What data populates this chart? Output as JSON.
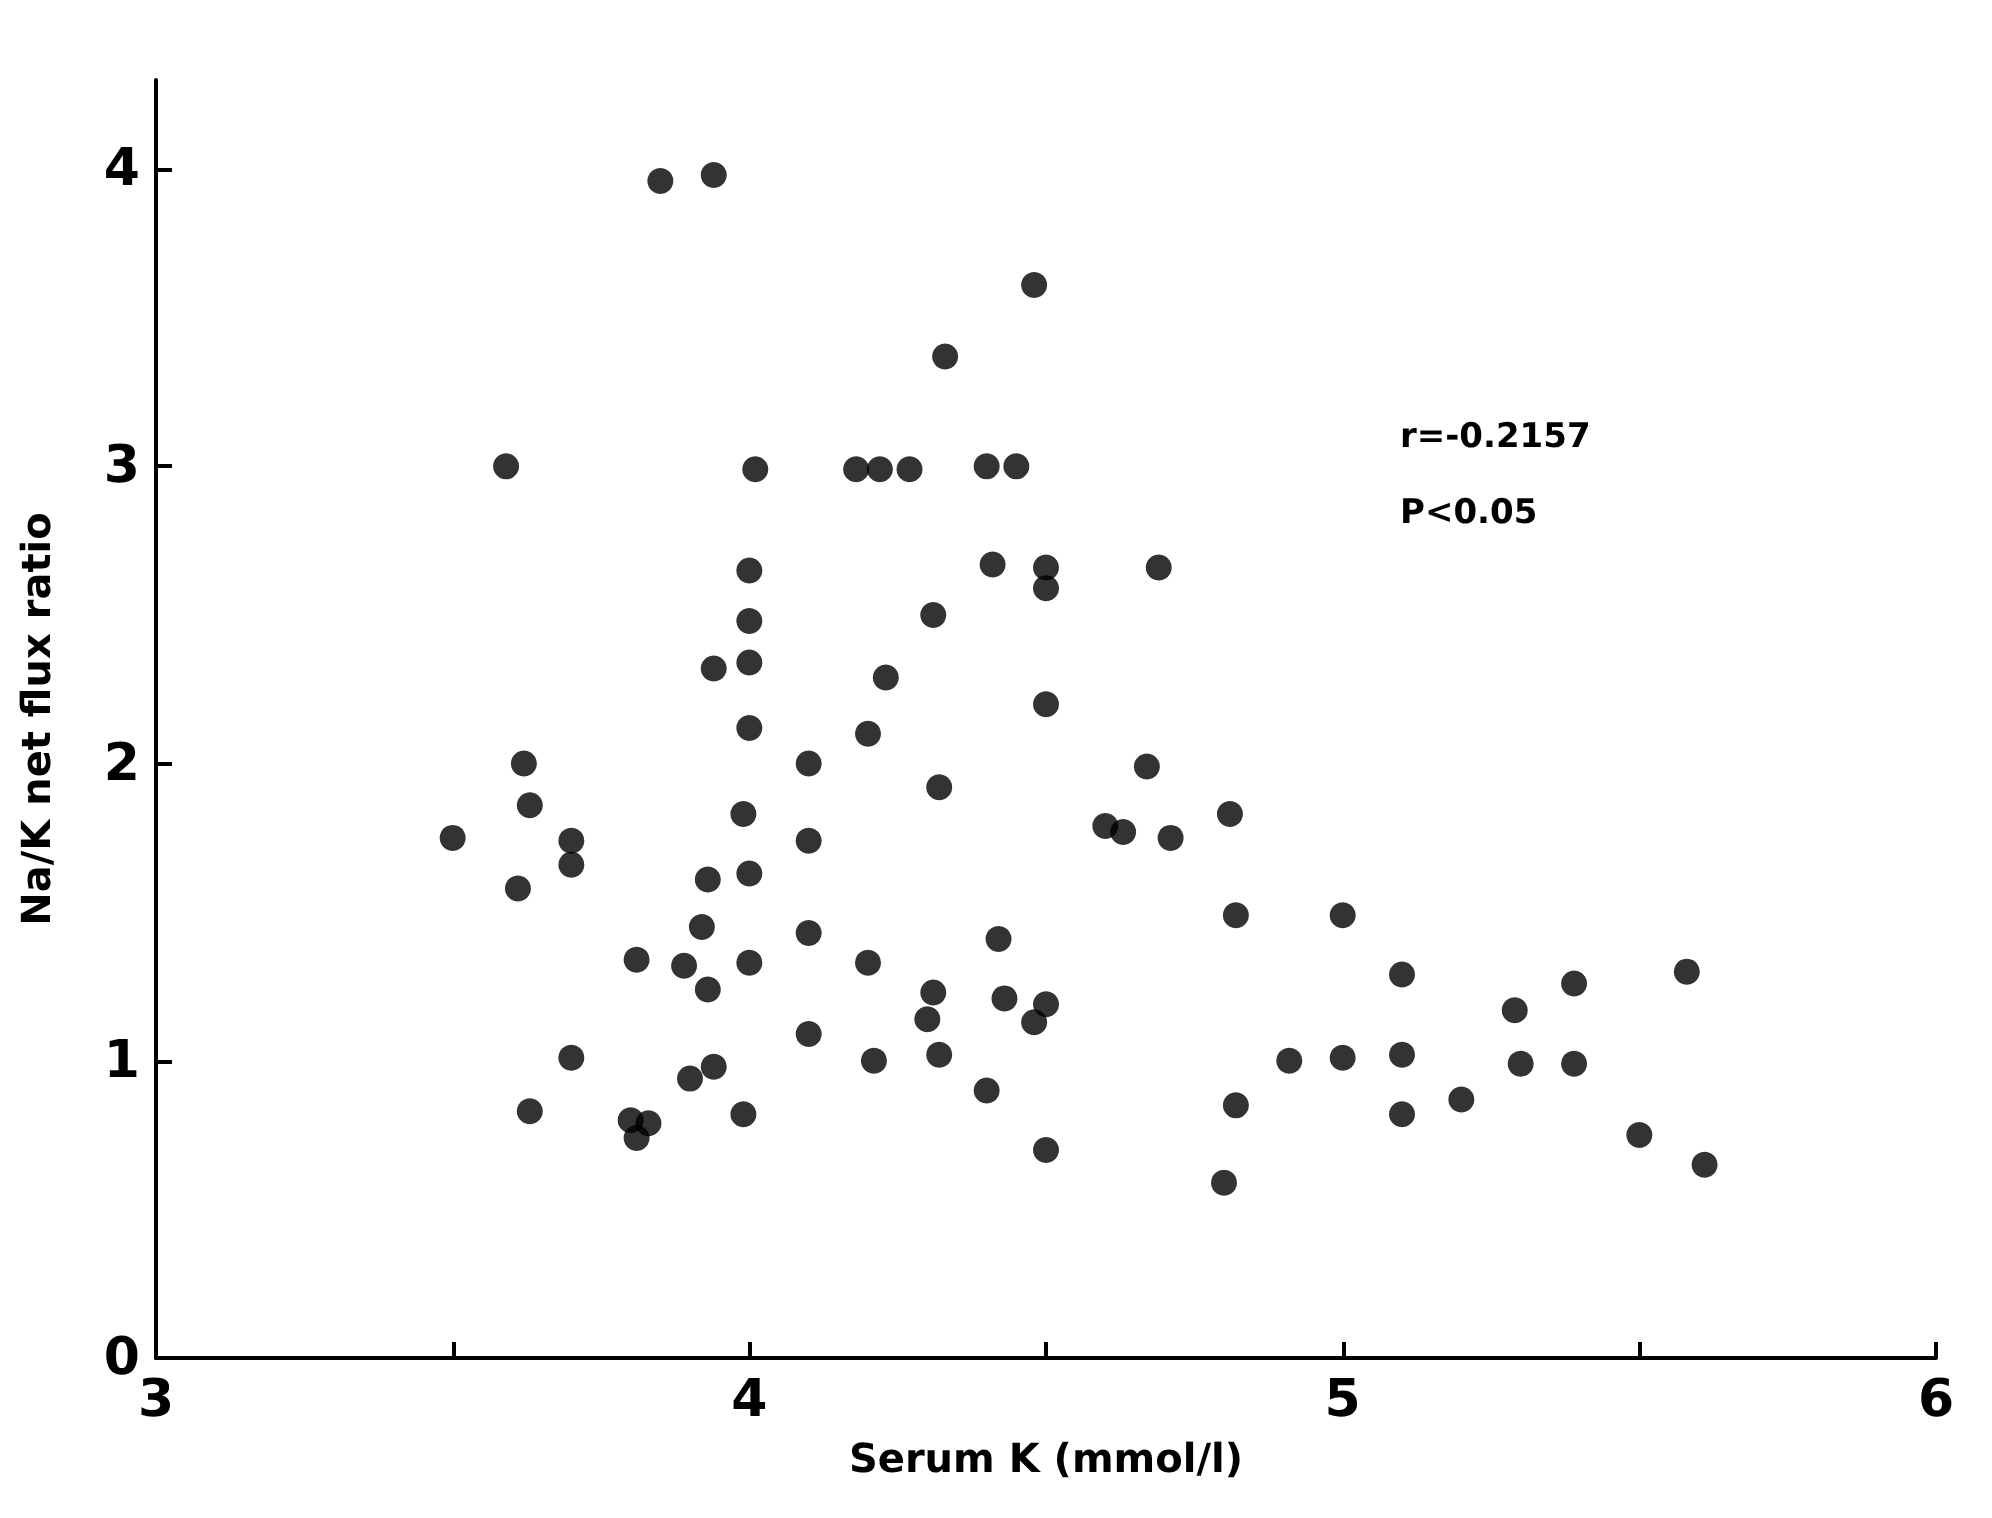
{
  "chart_data": {
    "type": "scatter",
    "xlabel": "Serum K (mmol/l)",
    "ylabel": "Na/K net flux ratio",
    "annotations": [
      "r=-0.2157",
      "P<0.05"
    ],
    "x": [
      3.85,
      3.94,
      3.59,
      4.01,
      4.18,
      4.22,
      4.27,
      4.33,
      4.0,
      4.0,
      4.0,
      3.94,
      4.0,
      4.31,
      4.23,
      4.2,
      3.62,
      3.63,
      3.5,
      3.7,
      3.7,
      3.61,
      3.99,
      4.1,
      4.1,
      4.32,
      3.93,
      4.0,
      3.92,
      3.81,
      3.89,
      4.0,
      3.93,
      4.1,
      4.2,
      4.31,
      4.3,
      4.32,
      4.1,
      4.21,
      3.7,
      3.9,
      3.94,
      3.63,
      3.8,
      3.83,
      3.81,
      3.99,
      4.4,
      4.48,
      4.4,
      4.45,
      4.41,
      4.5,
      4.5,
      4.69,
      4.5,
      4.67,
      4.6,
      4.63,
      4.71,
      4.81,
      4.82,
      5.0,
      4.42,
      4.43,
      4.5,
      4.48,
      4.5,
      4.91,
      5.0,
      5.1,
      5.1,
      5.1,
      4.82,
      4.8,
      5.2,
      5.29,
      5.39,
      5.3,
      5.39,
      5.5,
      5.58,
      5.61
    ],
    "values": [
      3.96,
      3.98,
      3.0,
      2.99,
      2.99,
      2.99,
      2.99,
      3.37,
      2.65,
      2.48,
      2.34,
      2.32,
      2.12,
      2.5,
      2.29,
      2.1,
      2.0,
      1.86,
      1.75,
      1.74,
      1.66,
      1.58,
      1.83,
      2.0,
      1.74,
      1.92,
      1.61,
      1.63,
      1.45,
      1.34,
      1.32,
      1.33,
      1.24,
      1.43,
      1.33,
      1.23,
      1.14,
      1.02,
      1.09,
      1.0,
      1.01,
      0.94,
      0.98,
      0.83,
      0.8,
      0.79,
      0.74,
      0.82,
      0.9,
      3.61,
      3.0,
      3.0,
      2.67,
      2.66,
      2.59,
      2.66,
      2.2,
      1.99,
      1.79,
      1.77,
      1.75,
      1.83,
      1.49,
      1.49,
      1.41,
      1.21,
      1.19,
      1.13,
      0.7,
      1.0,
      1.01,
      1.29,
      1.02,
      0.82,
      0.85,
      0.59,
      0.87,
      1.17,
      1.26,
      0.99,
      0.99,
      0.75,
      1.3,
      0.65
    ],
    "color": "#000000",
    "marker": "circle",
    "xlim": [
      3,
      6
    ],
    "xticks": [
      3,
      {
        "value": 3.5,
        "label": null
      },
      4,
      {
        "value": 4.5,
        "label": null
      },
      5,
      {
        "value": 5.5,
        "label": null
      },
      6
    ],
    "ylim": [
      0,
      4.3
    ],
    "yticks": [
      0,
      1,
      2,
      3,
      4
    ],
    "grid": false
  }
}
